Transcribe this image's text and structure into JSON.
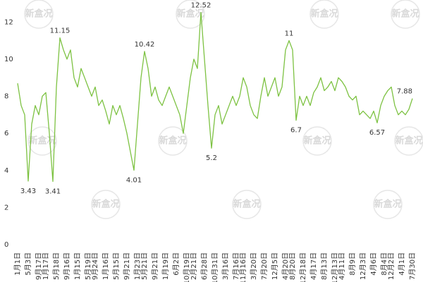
{
  "chart_data": {
    "type": "line",
    "watermark": "新盒况",
    "categories": [
      "1月1日",
      null,
      null,
      "5月3日",
      null,
      null,
      "9月17日",
      null,
      "1月17日",
      null,
      null,
      "5月18日",
      null,
      null,
      "9月16日",
      null,
      null,
      "1月15日",
      null,
      null,
      "5月19日",
      null,
      "9月24日",
      null,
      null,
      "1月16日",
      null,
      null,
      "5月15日",
      null,
      null,
      "9月21日",
      null,
      null,
      "1月23日",
      null,
      "5月21日",
      null,
      null,
      "9月21日",
      null,
      null,
      "1月19日",
      null,
      null,
      "6月2日",
      null,
      null,
      "10月19日",
      null,
      "2月21日",
      null,
      null,
      "6月28日",
      null,
      null,
      "10月31日",
      null,
      null,
      "3月16日",
      null,
      null,
      "7月16日",
      null,
      "11月16日",
      null,
      null,
      "3月20日",
      null,
      null,
      "7月20日",
      null,
      null,
      "12月5日",
      null,
      null,
      "4月20日",
      null,
      "8月20日",
      null,
      null,
      "12月18日",
      null,
      null,
      "4月17日",
      null,
      null,
      "8月13日",
      null,
      null,
      "12月13日",
      null,
      "4月11日",
      null,
      null,
      "8月9日",
      null,
      null,
      "12月3日",
      null,
      null,
      "4月6日",
      null,
      null,
      "8月4日",
      null,
      "12月2日",
      null,
      null,
      "4月1日",
      null,
      null,
      "7月30日"
    ],
    "series": [
      {
        "color": "#7dc242",
        "values": [
          8.7,
          7.5,
          7.0,
          3.43,
          6.5,
          7.5,
          7.0,
          8.0,
          8.2,
          6.0,
          3.41,
          8.5,
          11.15,
          10.5,
          10.0,
          10.5,
          9.0,
          8.5,
          9.5,
          9.0,
          8.5,
          8.0,
          8.5,
          7.5,
          7.8,
          7.2,
          6.5,
          7.5,
          7.0,
          7.5,
          6.8,
          6.0,
          5.0,
          4.01,
          6.5,
          9.0,
          10.42,
          9.5,
          8.0,
          8.5,
          7.8,
          7.5,
          8.0,
          8.5,
          8.0,
          7.5,
          7.0,
          6.0,
          7.5,
          9.0,
          10.0,
          9.5,
          12.52,
          10.0,
          7.5,
          5.2,
          7.0,
          7.5,
          6.5,
          7.0,
          7.5,
          8.0,
          7.5,
          8.0,
          9.0,
          8.5,
          7.5,
          7.0,
          6.8,
          8.0,
          9.0,
          8.0,
          8.5,
          9.0,
          8.0,
          8.5,
          10.5,
          11,
          10.5,
          6.7,
          8.0,
          7.5,
          8.0,
          7.5,
          8.2,
          8.5,
          9.0,
          8.3,
          8.5,
          8.8,
          8.3,
          9.0,
          8.8,
          8.5,
          8.0,
          7.8,
          8.0,
          7.0,
          7.2,
          7.0,
          6.8,
          7.2,
          6.57,
          7.5,
          8.0,
          8.3,
          8.5,
          7.5,
          7.0,
          7.2,
          7.0,
          7.3,
          7.88
        ],
        "value_labels": [
          null,
          null,
          null,
          "3.43",
          null,
          null,
          null,
          null,
          null,
          null,
          "3.41",
          null,
          "11.15",
          null,
          null,
          null,
          null,
          null,
          null,
          null,
          null,
          null,
          null,
          null,
          null,
          null,
          null,
          null,
          null,
          null,
          null,
          null,
          null,
          "4.01",
          null,
          null,
          "10.42",
          null,
          null,
          null,
          null,
          null,
          null,
          null,
          null,
          null,
          null,
          null,
          null,
          null,
          null,
          null,
          "12.52",
          null,
          null,
          "5.2",
          null,
          null,
          null,
          null,
          null,
          null,
          null,
          null,
          null,
          null,
          null,
          null,
          null,
          null,
          null,
          null,
          null,
          null,
          null,
          null,
          null,
          "11",
          null,
          "6.7",
          null,
          null,
          null,
          null,
          null,
          null,
          null,
          null,
          null,
          null,
          null,
          null,
          null,
          null,
          null,
          null,
          null,
          null,
          null,
          null,
          null,
          null,
          "6.57",
          null,
          null,
          null,
          null,
          null,
          null,
          null,
          null,
          null,
          "7.88"
        ]
      }
    ],
    "ylim": [
      0,
      13
    ],
    "yticks": [
      0,
      2,
      4,
      6,
      8,
      10,
      12
    ],
    "grid": false
  }
}
